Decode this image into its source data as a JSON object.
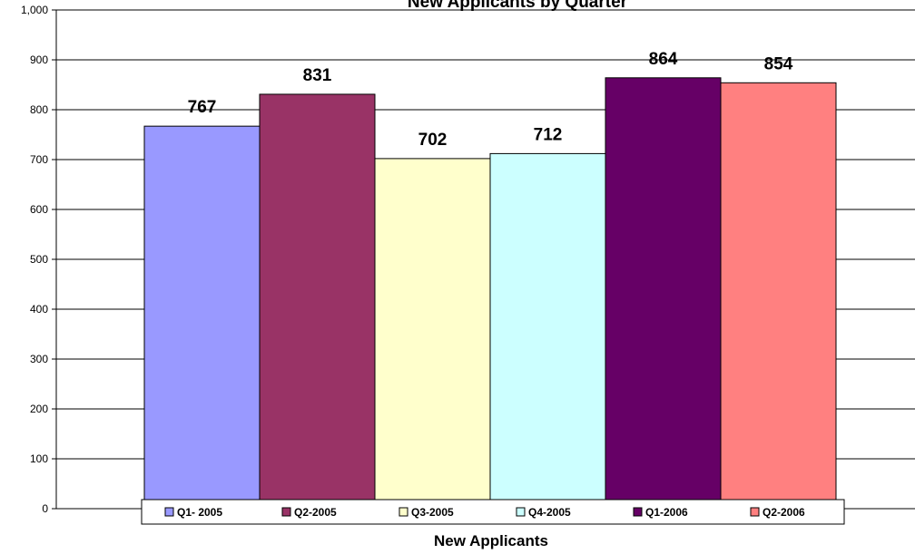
{
  "chart_data": {
    "type": "bar",
    "title": "New Applicants by Quarter",
    "xlabel": "New Applicants",
    "ylabel": "",
    "ylim": [
      0,
      1000
    ],
    "ytick_step": 100,
    "ytick_labels": [
      "0",
      "100",
      "200",
      "300",
      "400",
      "500",
      "600",
      "700",
      "800",
      "900",
      "1,000"
    ],
    "grid": true,
    "legend_position": "bottom",
    "series": [
      {
        "name": "Q1- 2005",
        "values": [
          767
        ],
        "color": "#9999FF"
      },
      {
        "name": "Q2-2005",
        "values": [
          831
        ],
        "color": "#993366"
      },
      {
        "name": "Q3-2005",
        "values": [
          702
        ],
        "color": "#FFFFCC"
      },
      {
        "name": "Q4-2005",
        "values": [
          712
        ],
        "color": "#CCFFFF"
      },
      {
        "name": "Q1-2006",
        "values": [
          864
        ],
        "color": "#660066"
      },
      {
        "name": "Q2-2006",
        "values": [
          854
        ],
        "color": "#FF8080"
      }
    ],
    "data_labels": [
      "767",
      "831",
      "702",
      "712",
      "864",
      "854"
    ]
  }
}
